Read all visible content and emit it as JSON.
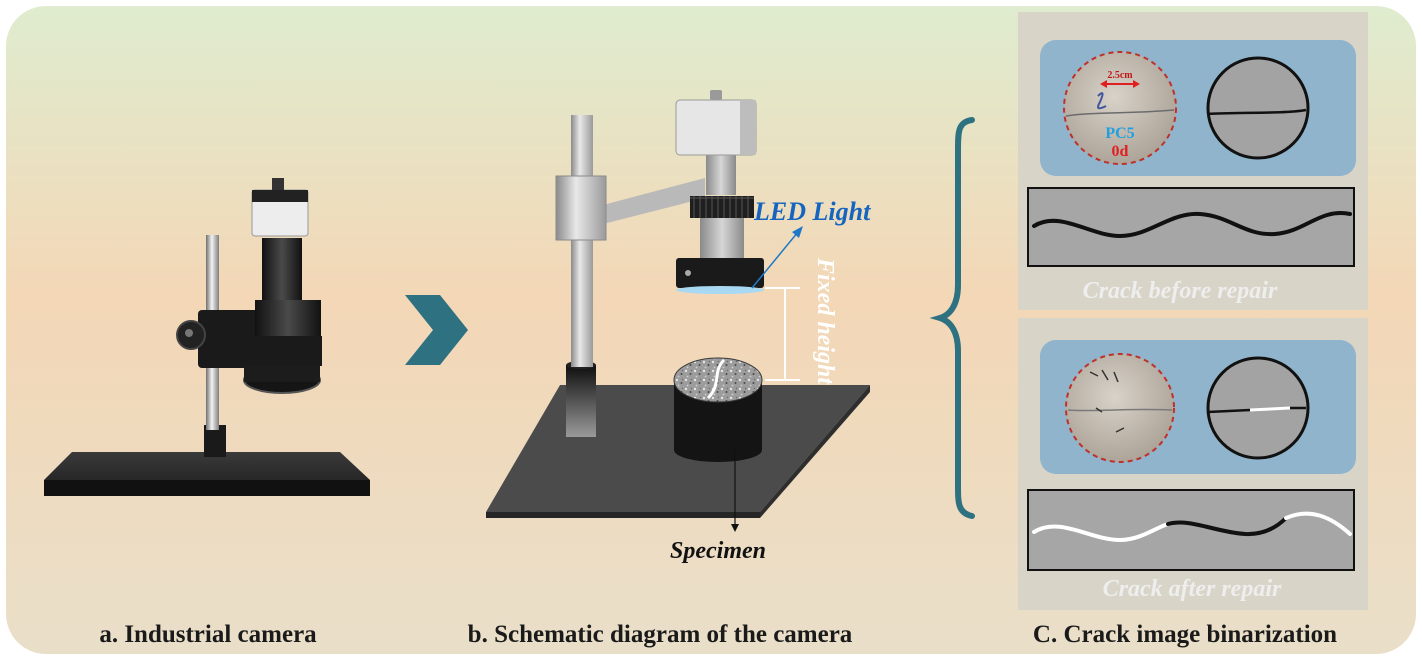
{
  "panel_a": {
    "caption": "a. Industrial camera"
  },
  "panel_b": {
    "caption": "b. Schematic diagram of the camera",
    "led_label": "LED Light",
    "height_label": "Fixed height",
    "specimen_label": "Specimen"
  },
  "panel_c": {
    "caption": "C. Crack image binarization",
    "scale_label": "2.5cm",
    "sample_code": "PC5",
    "sample_age": "0d",
    "before_label": "Crack before repair",
    "after_label": "Crack after repair"
  },
  "colors": {
    "arrow": "#2e7180",
    "brace": "#2e7180",
    "led_text": "#1565c0",
    "sample_code": "#1ea0e0",
    "sample_age": "#e02020",
    "scale_mark": "#e02020",
    "inner_panel": "#8fb4cc",
    "crack_panel": "#a6a6a6",
    "panel_c_bg": "#d8d4c8"
  },
  "icons": {
    "arrow": "chevron-right-icon",
    "brace": "curly-brace-icon"
  }
}
